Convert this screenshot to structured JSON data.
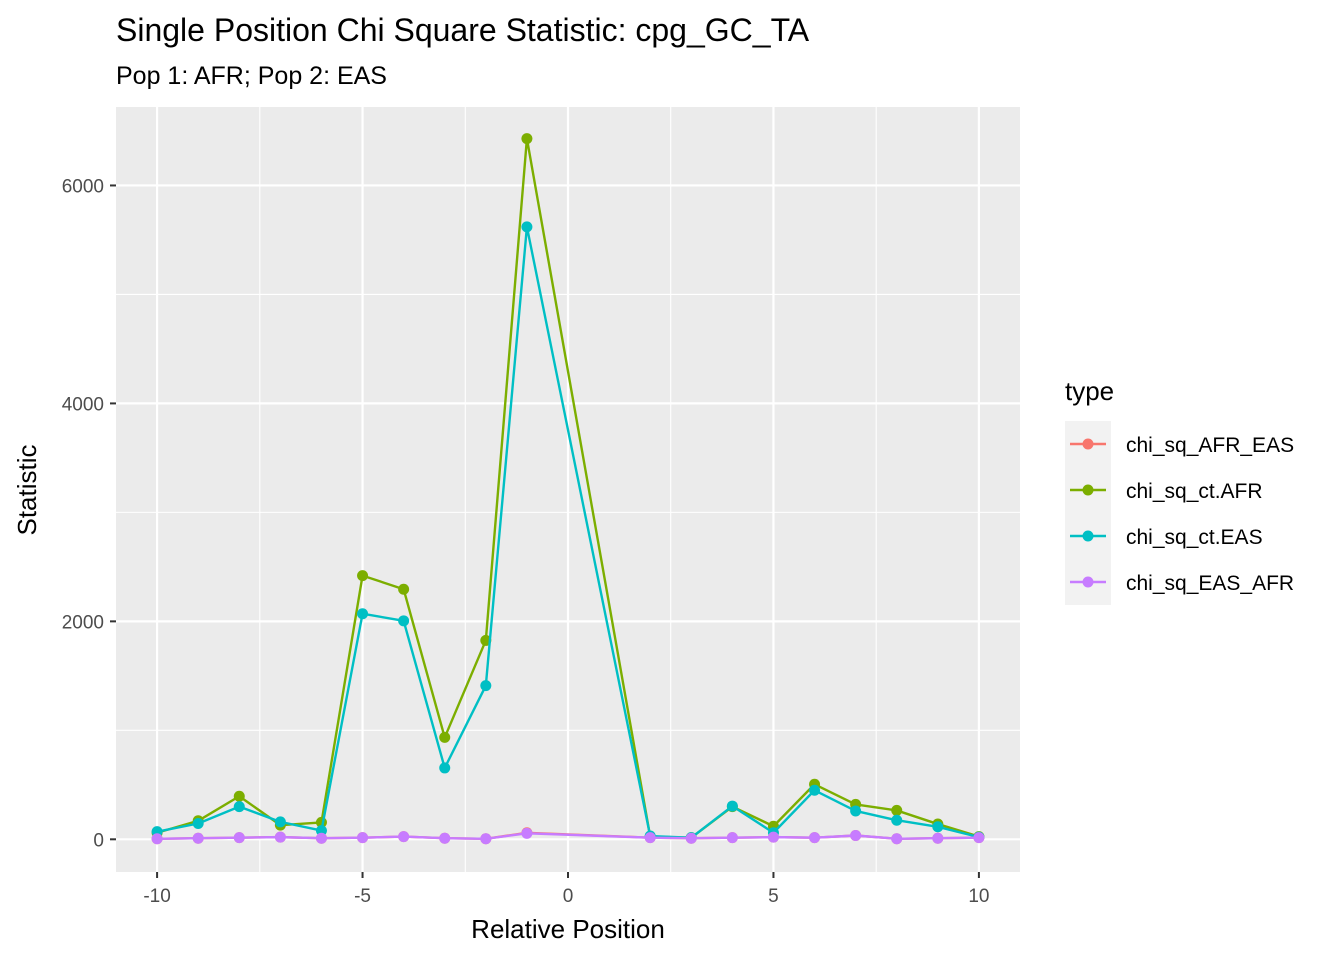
{
  "chart_data": {
    "type": "line",
    "title": "Single Position Chi Square Statistic: cpg_GC_TA",
    "subtitle": "Pop 1: AFR; Pop 2: EAS",
    "xlabel": "Relative Position",
    "ylabel": "Statistic",
    "xlim": [
      -11,
      11
    ],
    "ylim": [
      -300,
      6720
    ],
    "x_ticks": [
      -10,
      -5,
      0,
      5,
      10
    ],
    "x_tick_labels": [
      "-10",
      "-5",
      "0",
      "5",
      "10"
    ],
    "y_ticks": [
      0,
      2000,
      4000,
      6000
    ],
    "y_tick_labels": [
      "0",
      "2000",
      "4000",
      "6000"
    ],
    "grid": true,
    "legend": {
      "title": "type",
      "position": "right"
    },
    "series": [
      {
        "name": "chi_sq_AFR_EAS",
        "color": "#F8766D",
        "x": [
          -10,
          -9,
          -8,
          -7,
          -6,
          -5,
          -4,
          -3,
          -2,
          -1,
          2,
          3,
          4,
          5,
          6,
          7,
          8,
          9,
          10
        ],
        "values": [
          5,
          10,
          15,
          20,
          10,
          15,
          25,
          10,
          5,
          60,
          15,
          10,
          15,
          20,
          15,
          35,
          5,
          10,
          15
        ]
      },
      {
        "name": "chi_sq_ct.AFR",
        "color": "#7CAE00",
        "x": [
          -10,
          -9,
          -8,
          -7,
          -6,
          -5,
          -4,
          -3,
          -2,
          -1,
          2,
          3,
          4,
          5,
          6,
          7,
          8,
          9,
          10
        ],
        "values": [
          60,
          170,
          395,
          130,
          155,
          2420,
          2295,
          935,
          1825,
          6430,
          25,
          15,
          300,
          120,
          505,
          320,
          265,
          140,
          25
        ]
      },
      {
        "name": "chi_sq_ct.EAS",
        "color": "#00BFC4",
        "x": [
          -10,
          -9,
          -8,
          -7,
          -6,
          -5,
          -4,
          -3,
          -2,
          -1,
          2,
          3,
          4,
          5,
          6,
          7,
          8,
          9,
          10
        ],
        "values": [
          70,
          145,
          300,
          160,
          80,
          2070,
          2005,
          655,
          1410,
          5620,
          30,
          15,
          305,
          60,
          450,
          260,
          175,
          115,
          20
        ]
      },
      {
        "name": "chi_sq_EAS_AFR",
        "color": "#C77CFF",
        "x": [
          -10,
          -9,
          -8,
          -7,
          -6,
          -5,
          -4,
          -3,
          -2,
          -1,
          2,
          3,
          4,
          5,
          6,
          7,
          8,
          9,
          10
        ],
        "values": [
          5,
          10,
          15,
          20,
          10,
          15,
          25,
          10,
          5,
          55,
          15,
          10,
          15,
          20,
          15,
          35,
          5,
          10,
          15
        ]
      }
    ],
    "colors": {
      "panel_background": "#EBEBEB",
      "grid_major": "#FFFFFF",
      "legend_key_background": "#F2F2F2"
    }
  }
}
